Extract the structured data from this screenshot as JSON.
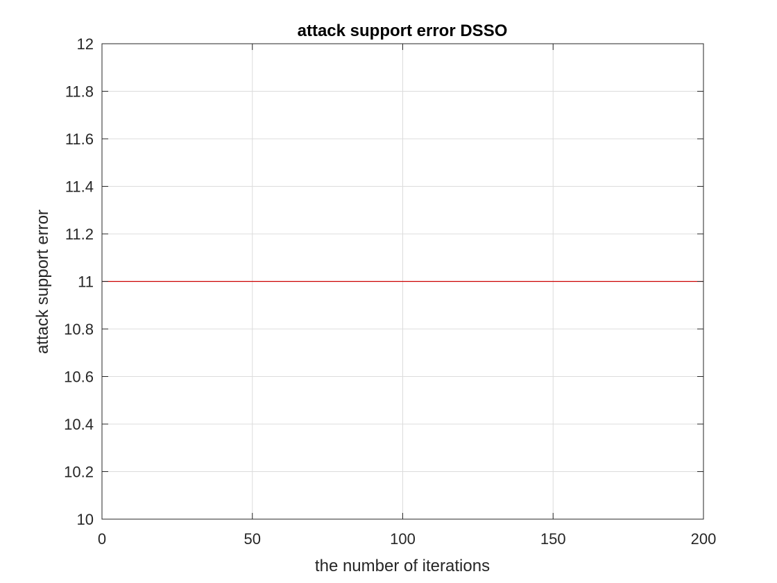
{
  "chart_data": {
    "type": "line",
    "title": "attack support error DSSO",
    "xlabel": "the number of iterations",
    "ylabel": "attack support error",
    "xlim": [
      0,
      200
    ],
    "ylim": [
      10,
      12
    ],
    "xticks": [
      0,
      50,
      100,
      150,
      200
    ],
    "yticks": [
      10,
      10.2,
      10.4,
      10.6,
      10.8,
      11,
      11.2,
      11.4,
      11.6,
      11.8,
      12
    ],
    "xtick_labels": [
      "0",
      "50",
      "100",
      "150",
      "200"
    ],
    "ytick_labels": [
      "10",
      "10.2",
      "10.4",
      "10.6",
      "10.8",
      "11",
      "11.2",
      "11.4",
      "11.6",
      "11.8",
      "12"
    ],
    "grid": true,
    "series": [
      {
        "color": "#cc0000",
        "x": [
          0,
          200
        ],
        "y": [
          11,
          11
        ]
      }
    ]
  }
}
